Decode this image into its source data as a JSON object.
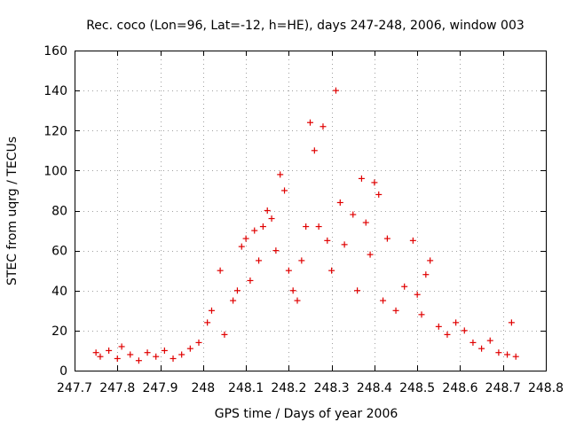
{
  "chart_data": {
    "type": "scatter",
    "title": "Rec. coco (Lon=96, Lat=-12, h=HE), days 247-248, 2006, window 003",
    "xlabel": "GPS time / Days of year 2006",
    "ylabel": "STEC from uqrg / TECUs",
    "xlim": [
      247.7,
      248.8
    ],
    "ylim": [
      0,
      160
    ],
    "xticks": [
      247.7,
      247.8,
      247.9,
      248.0,
      248.1,
      248.2,
      248.3,
      248.4,
      248.5,
      248.6,
      248.7,
      248.8
    ],
    "xtick_labels": [
      "247.7",
      "247.8",
      "247.9",
      "248",
      "248.1",
      "248.2",
      "248.3",
      "248.4",
      "248.5",
      "248.6",
      "248.7",
      "248.8"
    ],
    "yticks": [
      0,
      20,
      40,
      60,
      80,
      100,
      120,
      140,
      160
    ],
    "ytick_labels": [
      "0",
      "20",
      "40",
      "60",
      "80",
      "100",
      "120",
      "140",
      "160"
    ],
    "grid": true,
    "marker": "+",
    "marker_color": "#e00000",
    "series": [
      {
        "name": "STEC",
        "points": [
          [
            247.75,
            9
          ],
          [
            247.76,
            7
          ],
          [
            247.78,
            10
          ],
          [
            247.8,
            6
          ],
          [
            247.81,
            12
          ],
          [
            247.83,
            8
          ],
          [
            247.85,
            5
          ],
          [
            247.87,
            9
          ],
          [
            247.89,
            7
          ],
          [
            247.91,
            10
          ],
          [
            247.93,
            6
          ],
          [
            247.95,
            8
          ],
          [
            247.97,
            11
          ],
          [
            247.99,
            14
          ],
          [
            248.01,
            24
          ],
          [
            248.02,
            30
          ],
          [
            248.04,
            50
          ],
          [
            248.05,
            18
          ],
          [
            248.07,
            35
          ],
          [
            248.08,
            40
          ],
          [
            248.09,
            62
          ],
          [
            248.1,
            66
          ],
          [
            248.11,
            45
          ],
          [
            248.12,
            70
          ],
          [
            248.13,
            55
          ],
          [
            248.14,
            72
          ],
          [
            248.15,
            80
          ],
          [
            248.16,
            76
          ],
          [
            248.17,
            60
          ],
          [
            248.18,
            98
          ],
          [
            248.19,
            90
          ],
          [
            248.2,
            50
          ],
          [
            248.21,
            40
          ],
          [
            248.22,
            35
          ],
          [
            248.23,
            55
          ],
          [
            248.24,
            72
          ],
          [
            248.25,
            124
          ],
          [
            248.26,
            110
          ],
          [
            248.27,
            72
          ],
          [
            248.28,
            122
          ],
          [
            248.29,
            65
          ],
          [
            248.3,
            50
          ],
          [
            248.31,
            140
          ],
          [
            248.32,
            84
          ],
          [
            248.33,
            63
          ],
          [
            248.35,
            78
          ],
          [
            248.36,
            40
          ],
          [
            248.37,
            96
          ],
          [
            248.38,
            74
          ],
          [
            248.39,
            58
          ],
          [
            248.4,
            94
          ],
          [
            248.41,
            88
          ],
          [
            248.42,
            35
          ],
          [
            248.43,
            66
          ],
          [
            248.45,
            30
          ],
          [
            248.47,
            42
          ],
          [
            248.49,
            65
          ],
          [
            248.5,
            38
          ],
          [
            248.51,
            28
          ],
          [
            248.52,
            48
          ],
          [
            248.53,
            55
          ],
          [
            248.55,
            22
          ],
          [
            248.57,
            18
          ],
          [
            248.59,
            24
          ],
          [
            248.61,
            20
          ],
          [
            248.63,
            14
          ],
          [
            248.65,
            11
          ],
          [
            248.67,
            15
          ],
          [
            248.69,
            9
          ],
          [
            248.71,
            8
          ],
          [
            248.72,
            24
          ],
          [
            248.73,
            7
          ]
        ]
      }
    ]
  }
}
